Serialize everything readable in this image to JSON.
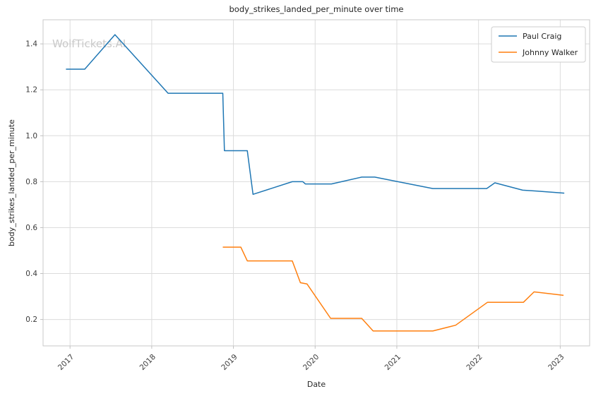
{
  "figure": {
    "watermark": "WolfTickets.AI"
  },
  "colors": {
    "background": "#ffffff",
    "grid": "#dcdcdc",
    "spine": "#c9c9c9",
    "tick": "#c0c0c0",
    "text": "#262626",
    "watermark": "#c9c9c9",
    "legend_border": "#cccccc"
  },
  "chart_data": {
    "type": "line",
    "title": "body_strikes_landed_per_minute over time",
    "xlabel": "Date",
    "ylabel": "body_strikes_landed_per_minute",
    "grid": true,
    "legend_position": "upper right",
    "xlim": [
      2016.67,
      2023.36
    ],
    "ylim": [
      0.085,
      1.505
    ],
    "x_ticks": [
      2017,
      2018,
      2019,
      2020,
      2021,
      2022,
      2023
    ],
    "y_ticks": [
      0.2,
      0.4,
      0.6,
      0.8,
      1.0,
      1.2,
      1.4
    ],
    "series": [
      {
        "name": "Paul Craig",
        "color": "#1f77b4",
        "points": [
          [
            2016.95,
            1.29
          ],
          [
            2017.18,
            1.29
          ],
          [
            2017.55,
            1.44
          ],
          [
            2018.2,
            1.185
          ],
          [
            2018.87,
            1.185
          ],
          [
            2018.89,
            0.935
          ],
          [
            2019.17,
            0.935
          ],
          [
            2019.24,
            0.745
          ],
          [
            2019.72,
            0.8
          ],
          [
            2019.85,
            0.8
          ],
          [
            2019.88,
            0.79
          ],
          [
            2020.2,
            0.79
          ],
          [
            2020.57,
            0.82
          ],
          [
            2020.73,
            0.82
          ],
          [
            2021.44,
            0.77
          ],
          [
            2022.1,
            0.77
          ],
          [
            2022.2,
            0.795
          ],
          [
            2022.54,
            0.763
          ],
          [
            2022.75,
            0.758
          ],
          [
            2023.05,
            0.75
          ]
        ]
      },
      {
        "name": "Johnny Walker",
        "color": "#ff7f0e",
        "points": [
          [
            2018.87,
            0.515
          ],
          [
            2019.09,
            0.515
          ],
          [
            2019.17,
            0.455
          ],
          [
            2019.72,
            0.455
          ],
          [
            2019.82,
            0.36
          ],
          [
            2019.9,
            0.355
          ],
          [
            2020.19,
            0.205
          ],
          [
            2020.57,
            0.205
          ],
          [
            2020.71,
            0.15
          ],
          [
            2021.44,
            0.15
          ],
          [
            2021.72,
            0.175
          ],
          [
            2022.11,
            0.275
          ],
          [
            2022.55,
            0.275
          ],
          [
            2022.68,
            0.32
          ],
          [
            2023.04,
            0.305
          ]
        ]
      }
    ]
  }
}
